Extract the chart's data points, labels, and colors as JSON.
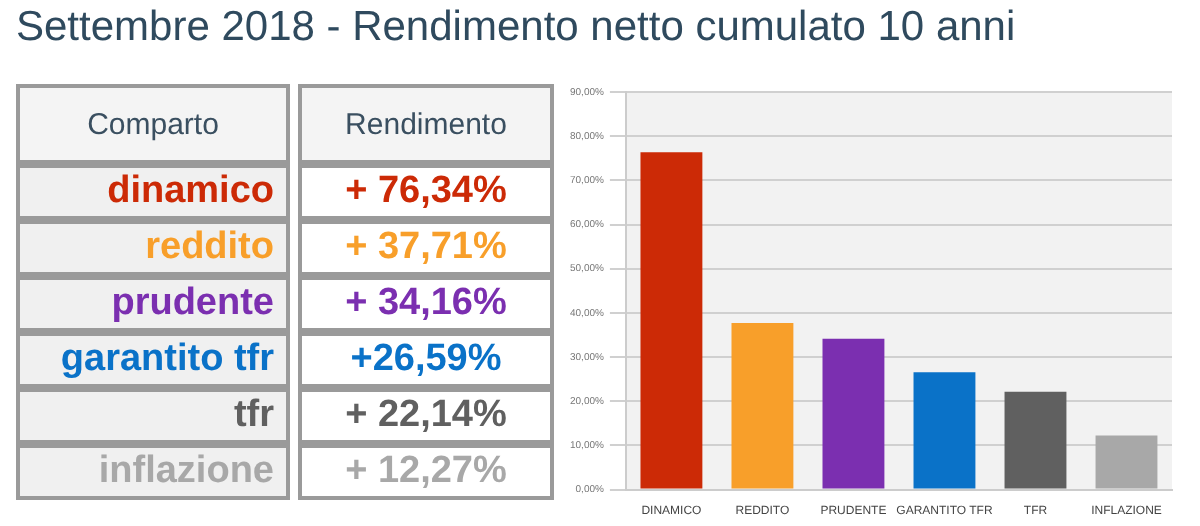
{
  "chart_data": {
    "type": "bar",
    "title": "Settembre 2018 - Rendimento netto cumulato 10 anni",
    "categories": [
      "DINAMICO",
      "REDDITO",
      "PRUDENTE",
      "GARANTITO TFR",
      "TFR",
      "INFLAZIONE"
    ],
    "values": [
      76.34,
      37.71,
      34.16,
      26.59,
      22.14,
      12.27
    ],
    "colors": [
      "#cc2a06",
      "#f89f2a",
      "#7b2fb0",
      "#0a72c8",
      "#606060",
      "#a8a8a8"
    ],
    "annotations": [
      "Comparto",
      "Rendimento",
      "dinamico",
      "+ 76,34%",
      "reddito",
      "+ 37,71%",
      "prudente",
      "+ 34,16%",
      "garantito tfr",
      "+26,59%",
      "tfr",
      "+ 22,14%",
      "inflazione",
      "+ 12,27%"
    ],
    "ylim": [
      0,
      90
    ],
    "yticks": [
      {
        "value": 0,
        "label": "0,00%"
      },
      {
        "value": 10,
        "label": "10,00%"
      },
      {
        "value": 20,
        "label": "20,00%"
      },
      {
        "value": 30,
        "label": "30,00%"
      },
      {
        "value": 40,
        "label": "40,00%"
      },
      {
        "value": 50,
        "label": "50,00%"
      },
      {
        "value": 60,
        "label": "60,00%"
      },
      {
        "value": 70,
        "label": "70,00%"
      },
      {
        "value": 80,
        "label": "80,00%"
      },
      {
        "value": 90,
        "label": "90,00%"
      }
    ],
    "grid": "y",
    "legend": false
  }
}
